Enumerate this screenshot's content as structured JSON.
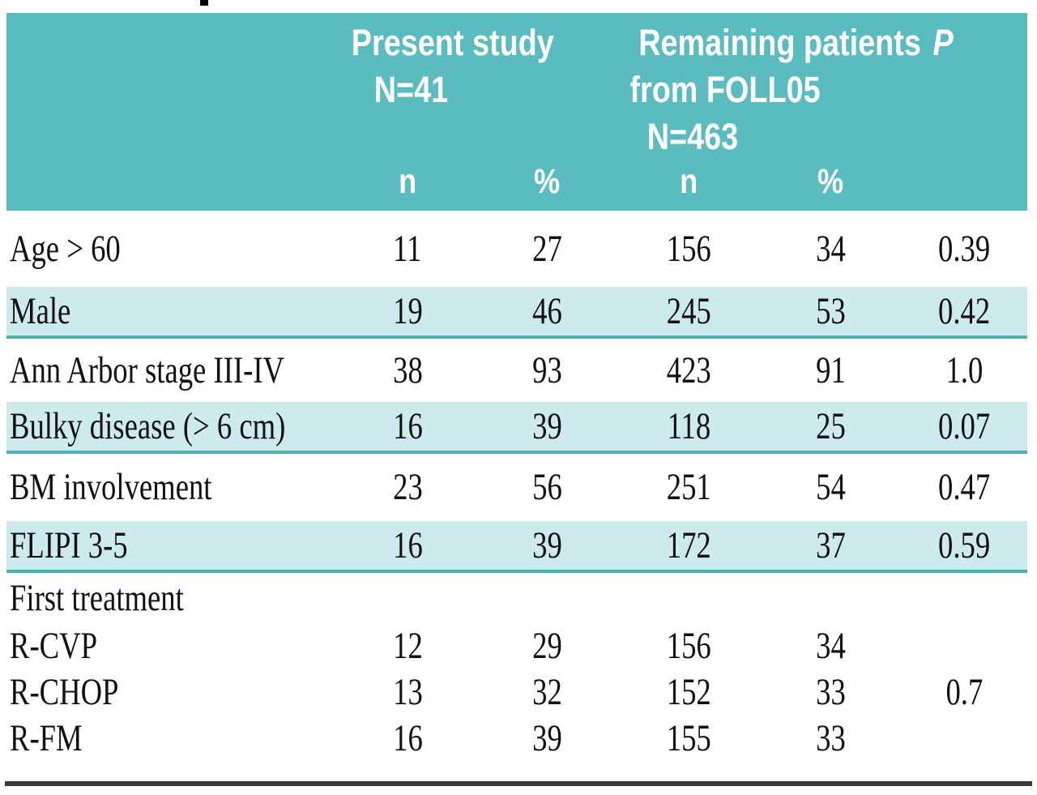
{
  "colors": {
    "header_bg": "#5abcbe",
    "shaded_row_bg": "#cdeaec",
    "shaded_row_border": "#4fb0b2",
    "header_text": "#ffffff",
    "body_text": "#111111",
    "bottom_rule": "#3c3c3c",
    "page_bg": "#ffffff"
  },
  "table": {
    "header": {
      "group1": {
        "line1": "Present study",
        "line2": "N=41"
      },
      "group2": {
        "line1": "Remaining patients",
        "line2": "from FOLL05",
        "line3": "N=463"
      },
      "p": "P",
      "sub": {
        "n1": "n",
        "pct1": "%",
        "n2": "n",
        "pct2": "%"
      }
    },
    "rows": [
      {
        "label": "Age > 60",
        "n1": "11",
        "pct1": "27",
        "n2": "156",
        "pct2": "34",
        "p": "0.39"
      },
      {
        "label": "Male",
        "n1": "19",
        "pct1": "46",
        "n2": "245",
        "pct2": "53",
        "p": "0.42"
      },
      {
        "label": "Ann Arbor stage III-IV",
        "n1": "38",
        "pct1": "93",
        "n2": "423",
        "pct2": "91",
        "p": "1.0"
      },
      {
        "label": "Bulky disease (> 6 cm)",
        "n1": "16",
        "pct1": "39",
        "n2": "118",
        "pct2": "25",
        "p": "0.07"
      },
      {
        "label": "BM involvement",
        "n1": "23",
        "pct1": "56",
        "n2": "251",
        "pct2": "54",
        "p": "0.47"
      },
      {
        "label": "FLIPI 3-5",
        "n1": "16",
        "pct1": "39",
        "n2": "172",
        "pct2": "37",
        "p": "0.59"
      },
      {
        "label": "First treatment",
        "n1": "",
        "pct1": "",
        "n2": "",
        "pct2": "",
        "p": ""
      },
      {
        "label": "R-CVP",
        "n1": "12",
        "pct1": "29",
        "n2": "156",
        "pct2": "34",
        "p": ""
      },
      {
        "label": "R-CHOP",
        "n1": "13",
        "pct1": "32",
        "n2": "152",
        "pct2": "33",
        "p": "0.7"
      },
      {
        "label": "R-FM",
        "n1": "16",
        "pct1": "39",
        "n2": "155",
        "pct2": "33",
        "p": ""
      }
    ]
  }
}
